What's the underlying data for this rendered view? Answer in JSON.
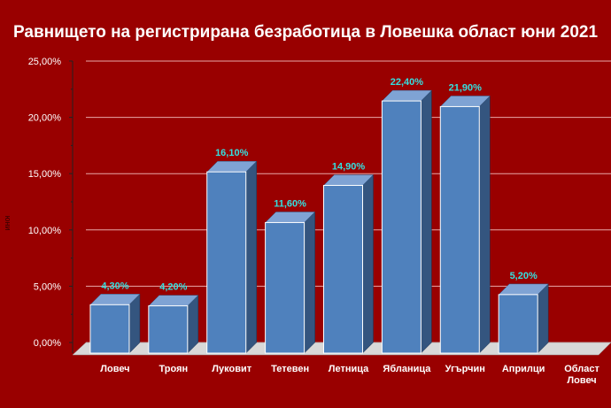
{
  "chart_data": {
    "type": "bar",
    "title": "Равнището на регистрирана безработица в Ловешка област юни 2021",
    "ylabel": "юни",
    "categories": [
      "Ловеч",
      "Троян",
      "Луковит",
      "Тетевен",
      "Летница",
      "Ябланица",
      "Угърчин",
      "Априлци",
      [
        "Област",
        "Ловеч"
      ]
    ],
    "values": [
      4.3,
      4.2,
      16.1,
      11.6,
      14.9,
      22.4,
      21.9,
      5.2,
      null
    ],
    "data_labels": [
      "4,30%",
      "4,20%",
      "16,10%",
      "11,60%",
      "14,90%",
      "22,40%",
      "21,90%",
      "5,20%",
      ""
    ],
    "yticks": [
      "0,00%",
      "5,00%",
      "10,00%",
      "15,00%",
      "20,00%",
      "25,00%"
    ],
    "ylim": [
      0,
      25
    ],
    "grid": true,
    "legend": "none",
    "colors": {
      "background": "#990000",
      "bar_front": "#4f81bd",
      "bar_top": "#7fa3d4",
      "bar_side": "#34557f",
      "label": "#33e0e0",
      "text": "#ffffff",
      "floor": "#d8d8d8"
    }
  }
}
